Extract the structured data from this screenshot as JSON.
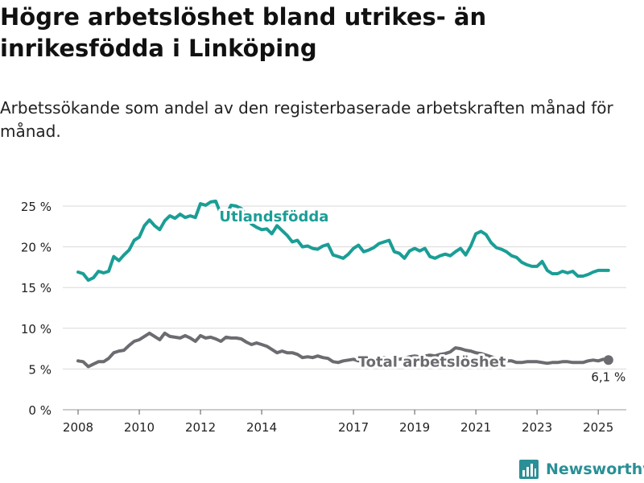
{
  "header": {
    "title": "Högre arbetslöshet bland utrikes- än inrikesfödda i Linköping",
    "subtitle": "Arbetssökande som andel av den registerbaserade arbetskraften månad för månad."
  },
  "brand": {
    "name": "Newsworthy",
    "icon": "bar-chart-logo-icon",
    "color": "#2a8f96"
  },
  "chart_data": {
    "type": "line",
    "title": "Högre arbetslöshet bland utrikes- än inrikesfödda i Linköping",
    "subtitle": "Arbetssökande som andel av den registerbaserade arbetskraften månad för månad.",
    "xlabel": "",
    "ylabel": "",
    "x_ticks": [
      "2008",
      "2010",
      "2012",
      "2014",
      "2017",
      "2019",
      "2021",
      "2023",
      "2025"
    ],
    "y_ticks": [
      "0 %",
      "5 %",
      "10 %",
      "15 %",
      "20 %",
      "25 %"
    ],
    "ylim": [
      0,
      25
    ],
    "xlim": [
      "2007-07",
      "2025-12"
    ],
    "grid": "horizontal",
    "legend": "inline labels",
    "end_label": "6,1 %",
    "series": [
      {
        "name": "Utlandsfödda",
        "color": "#1a9e96",
        "points": [
          [
            "2008-01",
            16.9
          ],
          [
            "2008-03",
            16.7
          ],
          [
            "2008-05",
            15.9
          ],
          [
            "2008-07",
            16.2
          ],
          [
            "2008-09",
            17.0
          ],
          [
            "2008-11",
            16.8
          ],
          [
            "2009-01",
            17.0
          ],
          [
            "2009-03",
            18.8
          ],
          [
            "2009-05",
            18.3
          ],
          [
            "2009-07",
            19.0
          ],
          [
            "2009-09",
            19.6
          ],
          [
            "2009-11",
            20.8
          ],
          [
            "2010-01",
            21.2
          ],
          [
            "2010-03",
            22.6
          ],
          [
            "2010-05",
            23.3
          ],
          [
            "2010-07",
            22.6
          ],
          [
            "2010-09",
            22.1
          ],
          [
            "2010-11",
            23.2
          ],
          [
            "2011-01",
            23.8
          ],
          [
            "2011-03",
            23.5
          ],
          [
            "2011-05",
            24.0
          ],
          [
            "2011-07",
            23.6
          ],
          [
            "2011-09",
            23.8
          ],
          [
            "2011-11",
            23.6
          ],
          [
            "2012-01",
            25.3
          ],
          [
            "2012-03",
            25.1
          ],
          [
            "2012-05",
            25.5
          ],
          [
            "2012-07",
            25.6
          ],
          [
            "2012-09",
            24.0
          ],
          [
            "2012-11",
            23.8
          ],
          [
            "2013-01",
            25.1
          ],
          [
            "2013-03",
            25.0
          ],
          [
            "2013-05",
            24.7
          ],
          [
            "2013-07",
            23.8
          ],
          [
            "2013-09",
            22.8
          ],
          [
            "2013-11",
            22.4
          ],
          [
            "2014-01",
            22.1
          ],
          [
            "2014-03",
            22.2
          ],
          [
            "2014-05",
            21.6
          ],
          [
            "2014-07",
            22.6
          ],
          [
            "2014-09",
            22.0
          ],
          [
            "2014-11",
            21.4
          ],
          [
            "2015-01",
            20.6
          ],
          [
            "2015-03",
            20.8
          ],
          [
            "2015-05",
            20.0
          ],
          [
            "2015-07",
            20.1
          ],
          [
            "2015-09",
            19.8
          ],
          [
            "2015-11",
            19.7
          ],
          [
            "2016-01",
            20.1
          ],
          [
            "2016-03",
            20.3
          ],
          [
            "2016-05",
            19.0
          ],
          [
            "2016-07",
            18.8
          ],
          [
            "2016-09",
            18.6
          ],
          [
            "2016-11",
            19.1
          ],
          [
            "2017-01",
            19.8
          ],
          [
            "2017-03",
            20.2
          ],
          [
            "2017-05",
            19.4
          ],
          [
            "2017-07",
            19.6
          ],
          [
            "2017-09",
            19.9
          ],
          [
            "2017-11",
            20.4
          ],
          [
            "2018-01",
            20.6
          ],
          [
            "2018-03",
            20.8
          ],
          [
            "2018-05",
            19.4
          ],
          [
            "2018-07",
            19.2
          ],
          [
            "2018-09",
            18.6
          ],
          [
            "2018-11",
            19.5
          ],
          [
            "2019-01",
            19.8
          ],
          [
            "2019-03",
            19.5
          ],
          [
            "2019-05",
            19.8
          ],
          [
            "2019-07",
            18.8
          ],
          [
            "2019-09",
            18.6
          ],
          [
            "2019-11",
            18.9
          ],
          [
            "2020-01",
            19.1
          ],
          [
            "2020-03",
            18.9
          ],
          [
            "2020-05",
            19.4
          ],
          [
            "2020-07",
            19.8
          ],
          [
            "2020-09",
            19.0
          ],
          [
            "2020-11",
            20.1
          ],
          [
            "2021-01",
            21.6
          ],
          [
            "2021-03",
            21.9
          ],
          [
            "2021-05",
            21.5
          ],
          [
            "2021-07",
            20.5
          ],
          [
            "2021-09",
            19.9
          ],
          [
            "2021-11",
            19.7
          ],
          [
            "2022-01",
            19.4
          ],
          [
            "2022-03",
            18.9
          ],
          [
            "2022-05",
            18.7
          ],
          [
            "2022-07",
            18.1
          ],
          [
            "2022-09",
            17.8
          ],
          [
            "2022-11",
            17.6
          ],
          [
            "2023-01",
            17.6
          ],
          [
            "2023-03",
            18.2
          ],
          [
            "2023-05",
            17.1
          ],
          [
            "2023-07",
            16.7
          ],
          [
            "2023-09",
            16.7
          ],
          [
            "2023-11",
            17.0
          ],
          [
            "2024-01",
            16.8
          ],
          [
            "2024-03",
            17.0
          ],
          [
            "2024-05",
            16.4
          ],
          [
            "2024-07",
            16.4
          ],
          [
            "2024-09",
            16.6
          ],
          [
            "2024-11",
            16.9
          ],
          [
            "2025-01",
            17.1
          ],
          [
            "2025-03",
            17.1
          ],
          [
            "2025-05",
            17.1
          ]
        ]
      },
      {
        "name": "Total arbetslöshet",
        "color": "#6b6b70",
        "points": [
          [
            "2008-01",
            6.0
          ],
          [
            "2008-03",
            5.9
          ],
          [
            "2008-05",
            5.3
          ],
          [
            "2008-07",
            5.6
          ],
          [
            "2008-09",
            5.9
          ],
          [
            "2008-11",
            5.9
          ],
          [
            "2009-01",
            6.3
          ],
          [
            "2009-03",
            7.0
          ],
          [
            "2009-05",
            7.2
          ],
          [
            "2009-07",
            7.3
          ],
          [
            "2009-09",
            7.9
          ],
          [
            "2009-11",
            8.4
          ],
          [
            "2010-01",
            8.6
          ],
          [
            "2010-03",
            9.0
          ],
          [
            "2010-05",
            9.4
          ],
          [
            "2010-07",
            9.0
          ],
          [
            "2010-09",
            8.6
          ],
          [
            "2010-11",
            9.4
          ],
          [
            "2011-01",
            9.0
          ],
          [
            "2011-03",
            8.9
          ],
          [
            "2011-05",
            8.8
          ],
          [
            "2011-07",
            9.1
          ],
          [
            "2011-09",
            8.8
          ],
          [
            "2011-11",
            8.4
          ],
          [
            "2012-01",
            9.1
          ],
          [
            "2012-03",
            8.8
          ],
          [
            "2012-05",
            8.9
          ],
          [
            "2012-07",
            8.7
          ],
          [
            "2012-09",
            8.4
          ],
          [
            "2012-11",
            8.9
          ],
          [
            "2013-01",
            8.8
          ],
          [
            "2013-03",
            8.8
          ],
          [
            "2013-05",
            8.7
          ],
          [
            "2013-07",
            8.3
          ],
          [
            "2013-09",
            8.0
          ],
          [
            "2013-11",
            8.2
          ],
          [
            "2014-01",
            8.0
          ],
          [
            "2014-03",
            7.8
          ],
          [
            "2014-05",
            7.4
          ],
          [
            "2014-07",
            7.0
          ],
          [
            "2014-09",
            7.2
          ],
          [
            "2014-11",
            7.0
          ],
          [
            "2015-01",
            7.0
          ],
          [
            "2015-03",
            6.8
          ],
          [
            "2015-05",
            6.4
          ],
          [
            "2015-07",
            6.5
          ],
          [
            "2015-09",
            6.4
          ],
          [
            "2015-11",
            6.6
          ],
          [
            "2016-01",
            6.4
          ],
          [
            "2016-03",
            6.3
          ],
          [
            "2016-05",
            5.9
          ],
          [
            "2016-07",
            5.8
          ],
          [
            "2016-09",
            6.0
          ],
          [
            "2016-11",
            6.1
          ],
          [
            "2017-01",
            6.2
          ],
          [
            "2017-03",
            6.0
          ],
          [
            "2017-05",
            6.0
          ],
          [
            "2017-07",
            6.1
          ],
          [
            "2017-09",
            6.2
          ],
          [
            "2017-11",
            6.3
          ],
          [
            "2018-01",
            6.4
          ],
          [
            "2018-03",
            6.3
          ],
          [
            "2018-05",
            6.2
          ],
          [
            "2018-07",
            6.2
          ],
          [
            "2018-09",
            6.3
          ],
          [
            "2018-11",
            6.5
          ],
          [
            "2019-01",
            6.6
          ],
          [
            "2019-03",
            6.5
          ],
          [
            "2019-05",
            6.6
          ],
          [
            "2019-07",
            6.7
          ],
          [
            "2019-09",
            6.6
          ],
          [
            "2019-11",
            6.8
          ],
          [
            "2020-01",
            6.9
          ],
          [
            "2020-03",
            7.1
          ],
          [
            "2020-05",
            7.6
          ],
          [
            "2020-07",
            7.5
          ],
          [
            "2020-09",
            7.3
          ],
          [
            "2020-11",
            7.2
          ],
          [
            "2021-01",
            7.0
          ],
          [
            "2021-03",
            6.9
          ],
          [
            "2021-05",
            6.7
          ],
          [
            "2021-07",
            6.5
          ],
          [
            "2021-09",
            6.3
          ],
          [
            "2021-11",
            6.2
          ],
          [
            "2022-01",
            6.0
          ],
          [
            "2022-03",
            6.0
          ],
          [
            "2022-05",
            5.8
          ],
          [
            "2022-07",
            5.8
          ],
          [
            "2022-09",
            5.9
          ],
          [
            "2022-11",
            5.9
          ],
          [
            "2023-01",
            5.9
          ],
          [
            "2023-03",
            5.8
          ],
          [
            "2023-05",
            5.7
          ],
          [
            "2023-07",
            5.8
          ],
          [
            "2023-09",
            5.8
          ],
          [
            "2023-11",
            5.9
          ],
          [
            "2024-01",
            5.9
          ],
          [
            "2024-03",
            5.8
          ],
          [
            "2024-05",
            5.8
          ],
          [
            "2024-07",
            5.8
          ],
          [
            "2024-09",
            6.0
          ],
          [
            "2024-11",
            6.1
          ],
          [
            "2025-01",
            6.0
          ],
          [
            "2025-03",
            6.2
          ],
          [
            "2025-05",
            6.1
          ]
        ]
      }
    ]
  }
}
